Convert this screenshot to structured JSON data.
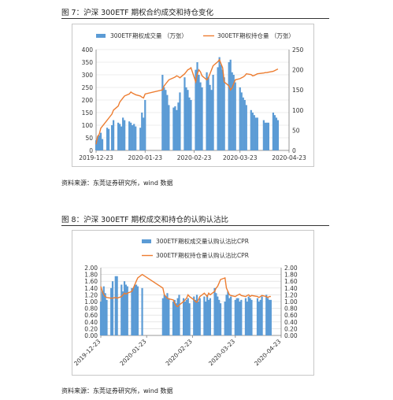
{
  "figure1": {
    "caption": "图 7：沪深 300ETF 期权合约成交和持仓变化",
    "source": "资料来源：东莞证券研究所，wind 数据"
  },
  "figure2": {
    "caption": "图 8：沪深 300ETF 期权成交和持仓的认购认沽比",
    "source": "资料来源：东莞证券研究所，wind 数据"
  },
  "colors": {
    "bar": "#5b9bd5",
    "line": "#ed7d31",
    "grid": "#d9d9d9",
    "axis": "#7f7f7f"
  },
  "chart_data": [
    {
      "type": "bar",
      "legend": [
        "300ETF期权成交量 （万张）",
        "300ETF期权持仓量 （万张）"
      ],
      "x_ticks": [
        "2019-12-23",
        "2020-01-23",
        "2020-02-23",
        "2020-03-23",
        "2020-04-23"
      ],
      "y_left_ticks": [
        "0",
        "50",
        "100",
        "150",
        "200",
        "250",
        "300",
        "350",
        "400"
      ],
      "y_right_ticks": [
        "0",
        "50",
        "100",
        "150",
        "200",
        "250"
      ],
      "ylim_left": [
        0,
        400
      ],
      "ylim_right": [
        0,
        250
      ],
      "legend_position": "top",
      "grid": true,
      "series": [
        {
          "name": "300ETF期权成交量 （万张）",
          "kind": "bar",
          "axis": "left",
          "x": [
            "2019-12-23",
            "2019-12-24",
            "2019-12-25",
            "2019-12-26",
            "2019-12-27",
            "2019-12-30",
            "2019-12-31",
            "2020-01-02",
            "2020-01-03",
            "2020-01-06",
            "2020-01-07",
            "2020-01-08",
            "2020-01-09",
            "2020-01-10",
            "2020-01-13",
            "2020-01-14",
            "2020-01-15",
            "2020-01-16",
            "2020-01-17",
            "2020-01-20",
            "2020-01-21",
            "2020-01-22",
            "2020-01-23",
            "2020-02-03",
            "2020-02-04",
            "2020-02-05",
            "2020-02-06",
            "2020-02-07",
            "2020-02-10",
            "2020-02-11",
            "2020-02-12",
            "2020-02-13",
            "2020-02-14",
            "2020-02-17",
            "2020-02-18",
            "2020-02-19",
            "2020-02-20",
            "2020-02-21",
            "2020-02-24",
            "2020-02-25",
            "2020-02-26",
            "2020-02-27",
            "2020-02-28",
            "2020-03-02",
            "2020-03-03",
            "2020-03-04",
            "2020-03-05",
            "2020-03-06",
            "2020-03-09",
            "2020-03-10",
            "2020-03-11",
            "2020-03-12",
            "2020-03-13",
            "2020-03-16",
            "2020-03-17",
            "2020-03-18",
            "2020-03-19",
            "2020-03-20",
            "2020-03-23",
            "2020-03-24",
            "2020-03-25",
            "2020-03-26",
            "2020-03-27",
            "2020-03-30",
            "2020-03-31",
            "2020-04-01",
            "2020-04-02",
            "2020-04-03",
            "2020-04-07",
            "2020-04-08",
            "2020-04-09",
            "2020-04-10",
            "2020-04-13",
            "2020-04-14",
            "2020-04-15",
            "2020-04-16"
          ],
          "values": [
            40,
            55,
            60,
            70,
            45,
            90,
            85,
            100,
            120,
            110,
            105,
            95,
            130,
            120,
            115,
            110,
            100,
            105,
            95,
            90,
            150,
            130,
            200,
            300,
            250,
            240,
            220,
            180,
            170,
            175,
            160,
            190,
            230,
            290,
            250,
            240,
            210,
            200,
            320,
            350,
            300,
            270,
            250,
            310,
            290,
            260,
            240,
            300,
            330,
            370,
            340,
            320,
            290,
            350,
            360,
            310,
            300,
            270,
            250,
            230,
            210,
            200,
            180,
            160,
            150,
            140,
            130,
            130,
            120,
            110,
            110,
            110,
            150,
            140,
            130,
            120
          ]
        },
        {
          "name": "300ETF期权持仓量 （万张）",
          "kind": "line",
          "axis": "right",
          "x": [
            "2019-12-23",
            "2019-12-24",
            "2019-12-25",
            "2019-12-26",
            "2019-12-27",
            "2019-12-30",
            "2019-12-31",
            "2020-01-02",
            "2020-01-03",
            "2020-01-06",
            "2020-01-07",
            "2020-01-08",
            "2020-01-09",
            "2020-01-10",
            "2020-01-13",
            "2020-01-14",
            "2020-01-15",
            "2020-01-16",
            "2020-01-17",
            "2020-01-20",
            "2020-01-21",
            "2020-01-22",
            "2020-01-23",
            "2020-02-03",
            "2020-02-04",
            "2020-02-05",
            "2020-02-06",
            "2020-02-07",
            "2020-02-10",
            "2020-02-11",
            "2020-02-12",
            "2020-02-13",
            "2020-02-14",
            "2020-02-17",
            "2020-02-18",
            "2020-02-19",
            "2020-02-20",
            "2020-02-21",
            "2020-02-24",
            "2020-02-25",
            "2020-02-26",
            "2020-02-27",
            "2020-02-28",
            "2020-03-02",
            "2020-03-03",
            "2020-03-04",
            "2020-03-05",
            "2020-03-06",
            "2020-03-09",
            "2020-03-10",
            "2020-03-11",
            "2020-03-12",
            "2020-03-13",
            "2020-03-16",
            "2020-03-17",
            "2020-03-18",
            "2020-03-19",
            "2020-03-20",
            "2020-03-23",
            "2020-03-24",
            "2020-03-25",
            "2020-03-26",
            "2020-03-27",
            "2020-03-30",
            "2020-03-31",
            "2020-04-01",
            "2020-04-02",
            "2020-04-03",
            "2020-04-07",
            "2020-04-08",
            "2020-04-09",
            "2020-04-10",
            "2020-04-13",
            "2020-04-14",
            "2020-04-15",
            "2020-04-16"
          ],
          "values": [
            15,
            35,
            40,
            55,
            60,
            75,
            80,
            90,
            100,
            110,
            120,
            125,
            130,
            135,
            140,
            145,
            142,
            140,
            138,
            135,
            132,
            130,
            140,
            150,
            160,
            165,
            170,
            175,
            180,
            182,
            185,
            183,
            180,
            190,
            195,
            200,
            202,
            205,
            170,
            190,
            200,
            195,
            185,
            175,
            180,
            190,
            200,
            210,
            220,
            225,
            215,
            205,
            170,
            160,
            150,
            155,
            165,
            175,
            178,
            180,
            182,
            185,
            190,
            188,
            185,
            186,
            188,
            190,
            192,
            193,
            193,
            194,
            196,
            198,
            200,
            202
          ]
        }
      ]
    },
    {
      "type": "bar",
      "legend": [
        "300ETF期权成交量认购认沽比CPR",
        "300ETF期权持仓量认购认沽比CPR"
      ],
      "x_ticks": [
        "2019-12-23",
        "2020-01-23",
        "2020-02-23",
        "2020-03-23",
        "2020-04-23"
      ],
      "y_left_ticks": [
        "0.00",
        "0.20",
        "0.40",
        "0.60",
        "0.80",
        "1.00",
        "1.20",
        "1.40",
        "1.60",
        "1.80",
        "2.00"
      ],
      "y_right_ticks": [
        "0.00",
        "0.20",
        "0.40",
        "0.60",
        "0.80",
        "1.00",
        "1.20",
        "1.40",
        "1.60",
        "1.80",
        "2.00"
      ],
      "ylim_left": [
        0,
        2
      ],
      "ylim_right": [
        0,
        2
      ],
      "legend_position": "top",
      "grid": true,
      "series": [
        {
          "name": "300ETF期权成交量认购认沽比CPR",
          "kind": "bar",
          "axis": "left",
          "x": [
            "2019-12-23",
            "2019-12-24",
            "2019-12-25",
            "2019-12-26",
            "2019-12-27",
            "2019-12-30",
            "2019-12-31",
            "2020-01-02",
            "2020-01-03",
            "2020-01-06",
            "2020-01-07",
            "2020-01-08",
            "2020-01-09",
            "2020-01-10",
            "2020-01-13",
            "2020-01-14",
            "2020-01-15",
            "2020-01-16",
            "2020-01-17",
            "2020-01-20",
            "2020-02-03",
            "2020-02-04",
            "2020-02-05",
            "2020-02-06",
            "2020-02-07",
            "2020-02-10",
            "2020-02-11",
            "2020-02-12",
            "2020-02-13",
            "2020-02-14",
            "2020-02-17",
            "2020-02-18",
            "2020-02-19",
            "2020-02-20",
            "2020-02-21",
            "2020-02-24",
            "2020-02-25",
            "2020-02-26",
            "2020-02-27",
            "2020-02-28",
            "2020-03-02",
            "2020-03-03",
            "2020-03-04",
            "2020-03-05",
            "2020-03-06",
            "2020-03-09",
            "2020-03-10",
            "2020-03-11",
            "2020-03-12",
            "2020-03-13",
            "2020-03-16",
            "2020-03-17",
            "2020-03-18",
            "2020-03-19",
            "2020-03-20",
            "2020-03-23",
            "2020-03-24",
            "2020-03-25",
            "2020-03-26",
            "2020-03-27",
            "2020-03-30",
            "2020-03-31",
            "2020-04-01",
            "2020-04-02",
            "2020-04-03",
            "2020-04-07",
            "2020-04-08",
            "2020-04-09",
            "2020-04-10",
            "2020-04-13",
            "2020-04-14",
            "2020-04-15",
            "2020-04-16"
          ],
          "values": [
            1.0,
            1.3,
            1.45,
            1.25,
            1.05,
            1.4,
            1.6,
            1.75,
            1.75,
            1.5,
            1.3,
            1.6,
            1.5,
            1.45,
            1.4,
            1.4,
            1.5,
            1.5,
            1.45,
            1.4,
            1.1,
            1.2,
            1.15,
            1.25,
            1.1,
            1.0,
            1.05,
            0.95,
            1.1,
            1.2,
            1.1,
            1.0,
            1.05,
            1.1,
            0.95,
            1.15,
            1.05,
            1.2,
            1.0,
            1.1,
            1.15,
            1.0,
            1.2,
            1.05,
            1.1,
            1.4,
            1.25,
            1.15,
            1.05,
            0.95,
            1.0,
            1.2,
            1.3,
            1.1,
            1.15,
            1.05,
            1.1,
            1.1,
            1.0,
            1.05,
            1.1,
            1.0,
            1.15,
            1.1,
            1.05,
            1.1,
            1.0,
            1.05,
            1.15,
            1.2,
            1.1,
            1.05,
            1.05
          ]
        },
        {
          "name": "300ETF期权持仓量认购认沽比CPR",
          "kind": "line",
          "axis": "right",
          "x": [
            "2019-12-23",
            "2019-12-24",
            "2019-12-25",
            "2019-12-26",
            "2019-12-27",
            "2019-12-30",
            "2019-12-31",
            "2020-01-02",
            "2020-01-03",
            "2020-01-06",
            "2020-01-07",
            "2020-01-08",
            "2020-01-09",
            "2020-01-10",
            "2020-01-13",
            "2020-01-14",
            "2020-01-15",
            "2020-01-16",
            "2020-01-17",
            "2020-01-20",
            "2020-02-03",
            "2020-02-04",
            "2020-02-05",
            "2020-02-06",
            "2020-02-07",
            "2020-02-10",
            "2020-02-11",
            "2020-02-12",
            "2020-02-13",
            "2020-02-14",
            "2020-02-17",
            "2020-02-18",
            "2020-02-19",
            "2020-02-20",
            "2020-02-21",
            "2020-02-24",
            "2020-02-25",
            "2020-02-26",
            "2020-02-27",
            "2020-02-28",
            "2020-03-02",
            "2020-03-03",
            "2020-03-04",
            "2020-03-05",
            "2020-03-06",
            "2020-03-09",
            "2020-03-10",
            "2020-03-11",
            "2020-03-12",
            "2020-03-13",
            "2020-03-16",
            "2020-03-17",
            "2020-03-18",
            "2020-03-19",
            "2020-03-20",
            "2020-03-23",
            "2020-03-24",
            "2020-03-25",
            "2020-03-26",
            "2020-03-27",
            "2020-03-30",
            "2020-03-31",
            "2020-04-01",
            "2020-04-02",
            "2020-04-03",
            "2020-04-07",
            "2020-04-08",
            "2020-04-09",
            "2020-04-10",
            "2020-04-13",
            "2020-04-14",
            "2020-04-15",
            "2020-04-16"
          ],
          "values": [
            1.45,
            1.3,
            1.2,
            1.15,
            1.12,
            1.1,
            1.1,
            1.12,
            1.1,
            1.15,
            1.2,
            1.25,
            1.22,
            1.25,
            1.3,
            1.4,
            1.5,
            1.6,
            1.7,
            1.8,
            1.4,
            1.2,
            1.15,
            1.1,
            1.08,
            1.05,
            0.95,
            0.88,
            0.85,
            0.9,
            1.0,
            1.05,
            1.1,
            1.2,
            1.15,
            1.05,
            1.0,
            0.98,
            1.05,
            1.15,
            1.25,
            1.2,
            1.15,
            1.25,
            1.2,
            1.3,
            1.4,
            1.45,
            1.55,
            1.65,
            1.7,
            1.4,
            1.3,
            1.2,
            1.18,
            1.15,
            1.18,
            1.2,
            1.22,
            1.18,
            1.15,
            1.18,
            1.2,
            1.15,
            1.18,
            1.15,
            1.12,
            1.15,
            1.18,
            1.15,
            1.12,
            1.15,
            1.15
          ]
        }
      ]
    }
  ]
}
